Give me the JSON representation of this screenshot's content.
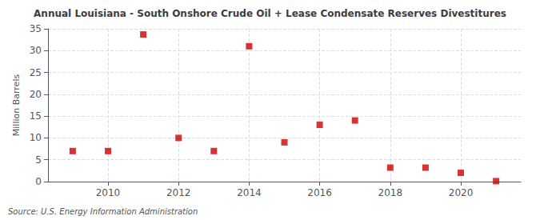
{
  "chart_data": {
    "type": "scatter",
    "title": "Annual Louisiana - South Onshore Crude Oil + Lease Condensate Reserves Divestitures",
    "ylabel": "Million Barrels",
    "source": "Source: U.S. Energy Information Administration",
    "x": [
      2009,
      2010,
      2011,
      2012,
      2013,
      2014,
      2015,
      2016,
      2017,
      2018,
      2019,
      2020,
      2021
    ],
    "values": [
      7.0,
      7.0,
      33.7,
      10.0,
      7.0,
      31.0,
      9.0,
      13.0,
      14.0,
      3.2,
      3.2,
      2.0,
      0.1
    ],
    "color": "#cc0000",
    "marker": "square",
    "xlim": [
      2008.3,
      2021.7
    ],
    "xticks": [
      2010,
      2012,
      2014,
      2016,
      2018,
      2020
    ],
    "ylim": [
      0,
      35
    ],
    "yticks": [
      0,
      5,
      10,
      15,
      20,
      25,
      30,
      35
    ],
    "grid": true
  }
}
